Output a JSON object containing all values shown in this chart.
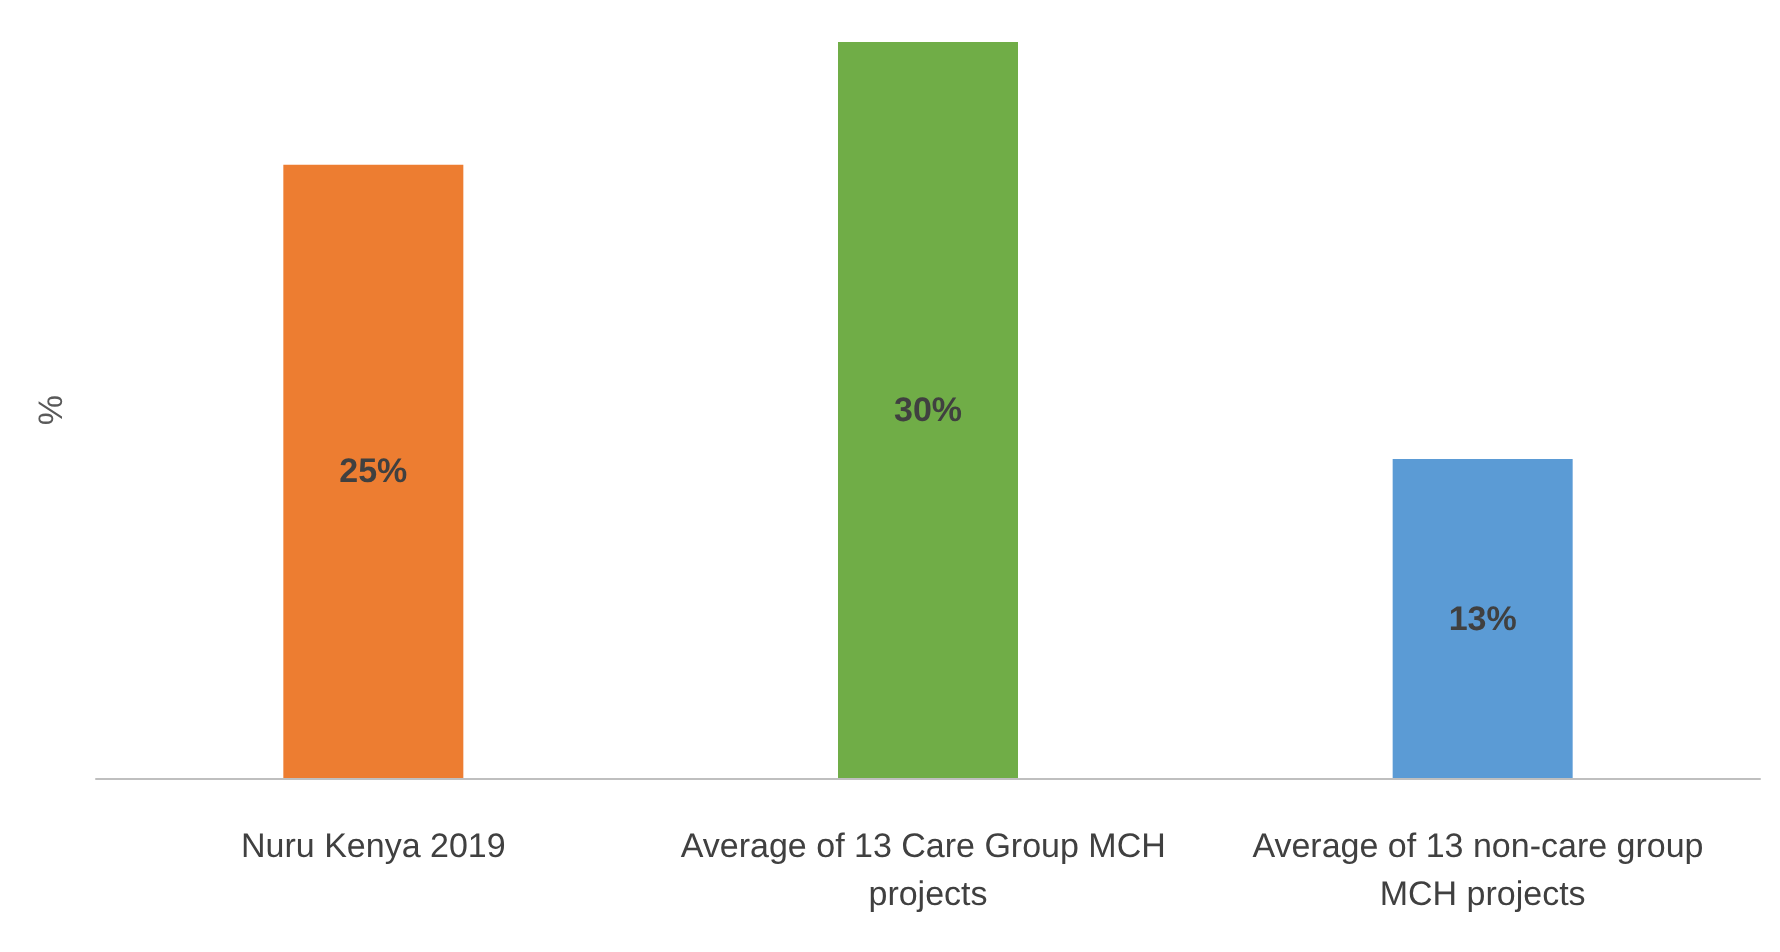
{
  "chart_data": {
    "type": "bar",
    "ylabel": "%",
    "categories": [
      "Nuru Kenya 2019",
      "Average of 13 Care Group MCH projects",
      "Average of 13 non-care group MCH projects"
    ],
    "values": [
      25,
      30,
      13
    ],
    "value_labels": [
      "25%",
      "30%",
      "13%"
    ],
    "colors": [
      "#ed7d31",
      "#70ad47",
      "#5b9bd5"
    ],
    "ylim": [
      0,
      30
    ],
    "grid": false
  }
}
